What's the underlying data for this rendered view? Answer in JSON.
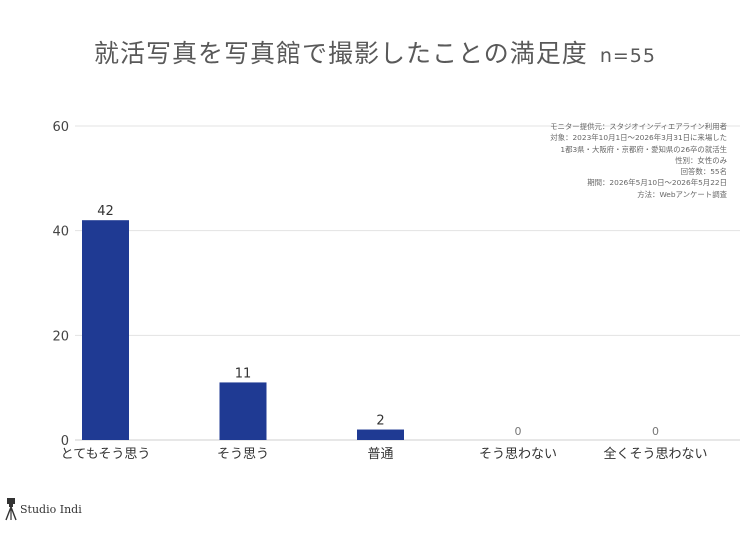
{
  "title": "就活写真を写真館で撮影したことの満足度",
  "sample_size": "n=55",
  "notes": [
    "モニター提供元：スタジオインディエアライン利用者",
    "対象：2023年10月1日〜2026年3月31日に来場した",
    "1都3県・大阪府・京都府・愛知県の26卒の就活生",
    "性別：女性のみ",
    "回答数：55名",
    "期間：2026年5月10日〜2026年5月22日",
    "方法：Webアンケート調査"
  ],
  "logo": {
    "text": "Studio Indi",
    "icon": "camera-tripod-icon"
  },
  "chart_data": {
    "type": "bar",
    "categories": [
      "とてもそう思う",
      "そう思う",
      "普通",
      "そう思わない",
      "全くそう思わない"
    ],
    "values": [
      42,
      11,
      2,
      0,
      0
    ],
    "ylim": [
      0,
      60
    ],
    "yticks": [
      0,
      20,
      40,
      60
    ],
    "grid": true,
    "bar_color": "#1f3a93",
    "xlabel": "",
    "ylabel": ""
  }
}
